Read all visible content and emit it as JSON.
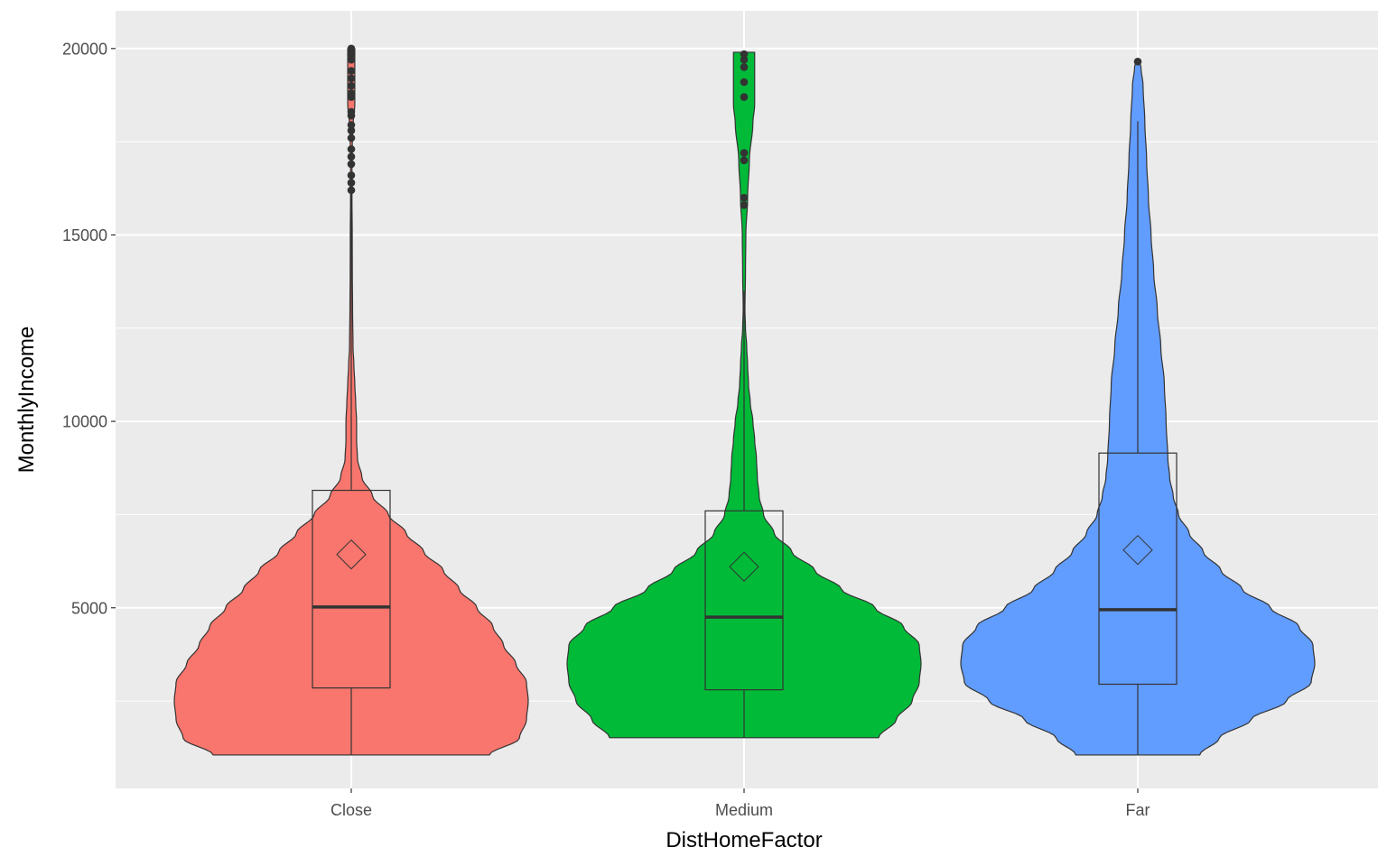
{
  "chart_data": {
    "type": "violin",
    "title": "",
    "xlabel": "DistHomeFactor",
    "ylabel": "MonthlyIncome",
    "categories": [
      "Close",
      "Medium",
      "Far"
    ],
    "ylim": [
      0,
      21000
    ],
    "yticks": [
      5000,
      10000,
      15000,
      20000
    ],
    "ytick_labels": [
      "5000",
      "10000",
      "15000",
      "20000"
    ],
    "grid": true,
    "legend": "none",
    "colors": {
      "panel": "#EBEBEB",
      "grid": "#FFFFFF",
      "outline": "#333333",
      "Close": "#F8766D",
      "Medium": "#00BA38",
      "Far": "#619CFF"
    },
    "groups": [
      {
        "name": "Close",
        "min": 1051,
        "q1": 2850,
        "median": 5020,
        "q3": 8150,
        "mean": 6430,
        "whisker_low": 1051,
        "whisker_high": 16100,
        "outliers": [
          16200,
          16400,
          16600,
          16900,
          17100,
          17300,
          17600,
          17800,
          17950,
          18200,
          18300,
          18700,
          18800,
          19000,
          19200,
          19400,
          19700,
          19850,
          19900,
          19950,
          19999
        ],
        "density": [
          [
            1051,
            0.78
          ],
          [
            1500,
            0.95
          ],
          [
            2000,
            0.99
          ],
          [
            2500,
            1.0
          ],
          [
            3000,
            0.99
          ],
          [
            3500,
            0.93
          ],
          [
            4000,
            0.86
          ],
          [
            4500,
            0.8
          ],
          [
            5000,
            0.71
          ],
          [
            5500,
            0.61
          ],
          [
            6000,
            0.52
          ],
          [
            6500,
            0.41
          ],
          [
            7000,
            0.31
          ],
          [
            7500,
            0.21
          ],
          [
            8000,
            0.12
          ],
          [
            8500,
            0.06
          ],
          [
            9000,
            0.035
          ],
          [
            9500,
            0.03
          ],
          [
            10000,
            0.03
          ],
          [
            10500,
            0.025
          ],
          [
            11000,
            0.02
          ],
          [
            11500,
            0.015
          ],
          [
            12000,
            0.01
          ],
          [
            13000,
            0.0075
          ],
          [
            14000,
            0.006
          ],
          [
            15000,
            0.0055
          ],
          [
            16000,
            0.004
          ],
          [
            17000,
            0.004
          ],
          [
            17500,
            0.006
          ],
          [
            18000,
            0.011
          ],
          [
            18500,
            0.02
          ],
          [
            19000,
            0.02
          ],
          [
            19500,
            0.02
          ],
          [
            19999,
            0.02
          ]
        ]
      },
      {
        "name": "Medium",
        "min": 1514,
        "q1": 2800,
        "median": 4750,
        "q3": 7600,
        "mean": 6100,
        "whisker_low": 1514,
        "whisker_high": 13500,
        "outliers": [
          15800,
          16000,
          17000,
          17200,
          18700,
          19100,
          19500,
          19700,
          19850
        ],
        "density": [
          [
            1514,
            0.76
          ],
          [
            2000,
            0.86
          ],
          [
            2500,
            0.95
          ],
          [
            3000,
            0.99
          ],
          [
            3500,
            1.0
          ],
          [
            4000,
            0.99
          ],
          [
            4500,
            0.9
          ],
          [
            5000,
            0.74
          ],
          [
            5500,
            0.55
          ],
          [
            6000,
            0.4
          ],
          [
            6500,
            0.27
          ],
          [
            7000,
            0.17
          ],
          [
            7500,
            0.11
          ],
          [
            8000,
            0.085
          ],
          [
            8500,
            0.075
          ],
          [
            9000,
            0.07
          ],
          [
            9500,
            0.06
          ],
          [
            10000,
            0.05
          ],
          [
            10500,
            0.035
          ],
          [
            11000,
            0.025
          ],
          [
            11500,
            0.02
          ],
          [
            12000,
            0.015
          ],
          [
            12500,
            0.008
          ],
          [
            13000,
            0.005
          ],
          [
            14000,
            0.008
          ],
          [
            15000,
            0.01
          ],
          [
            16000,
            0.02
          ],
          [
            17000,
            0.03
          ],
          [
            18000,
            0.05
          ],
          [
            18500,
            0.06
          ],
          [
            19000,
            0.06
          ],
          [
            19500,
            0.06
          ],
          [
            19900,
            0.06
          ]
        ]
      },
      {
        "name": "Far",
        "min": 1051,
        "q1": 2950,
        "median": 4950,
        "q3": 9150,
        "mean": 6550,
        "whisker_low": 1051,
        "whisker_high": 18050,
        "outliers": [
          19650
        ],
        "density": [
          [
            1051,
            0.35
          ],
          [
            1500,
            0.46
          ],
          [
            2000,
            0.64
          ],
          [
            2500,
            0.84
          ],
          [
            3000,
            0.98
          ],
          [
            3500,
            1.0
          ],
          [
            4000,
            0.99
          ],
          [
            4500,
            0.91
          ],
          [
            5000,
            0.75
          ],
          [
            5500,
            0.59
          ],
          [
            6000,
            0.47
          ],
          [
            6500,
            0.37
          ],
          [
            7000,
            0.29
          ],
          [
            7500,
            0.23
          ],
          [
            8000,
            0.2
          ],
          [
            8500,
            0.18
          ],
          [
            9000,
            0.17
          ],
          [
            10000,
            0.16
          ],
          [
            11000,
            0.15
          ],
          [
            12000,
            0.13
          ],
          [
            13000,
            0.11
          ],
          [
            14000,
            0.09
          ],
          [
            15000,
            0.075
          ],
          [
            16000,
            0.06
          ],
          [
            17000,
            0.05
          ],
          [
            18000,
            0.04
          ],
          [
            19000,
            0.03
          ],
          [
            19500,
            0.018
          ],
          [
            19650,
            0.01
          ]
        ]
      }
    ]
  }
}
